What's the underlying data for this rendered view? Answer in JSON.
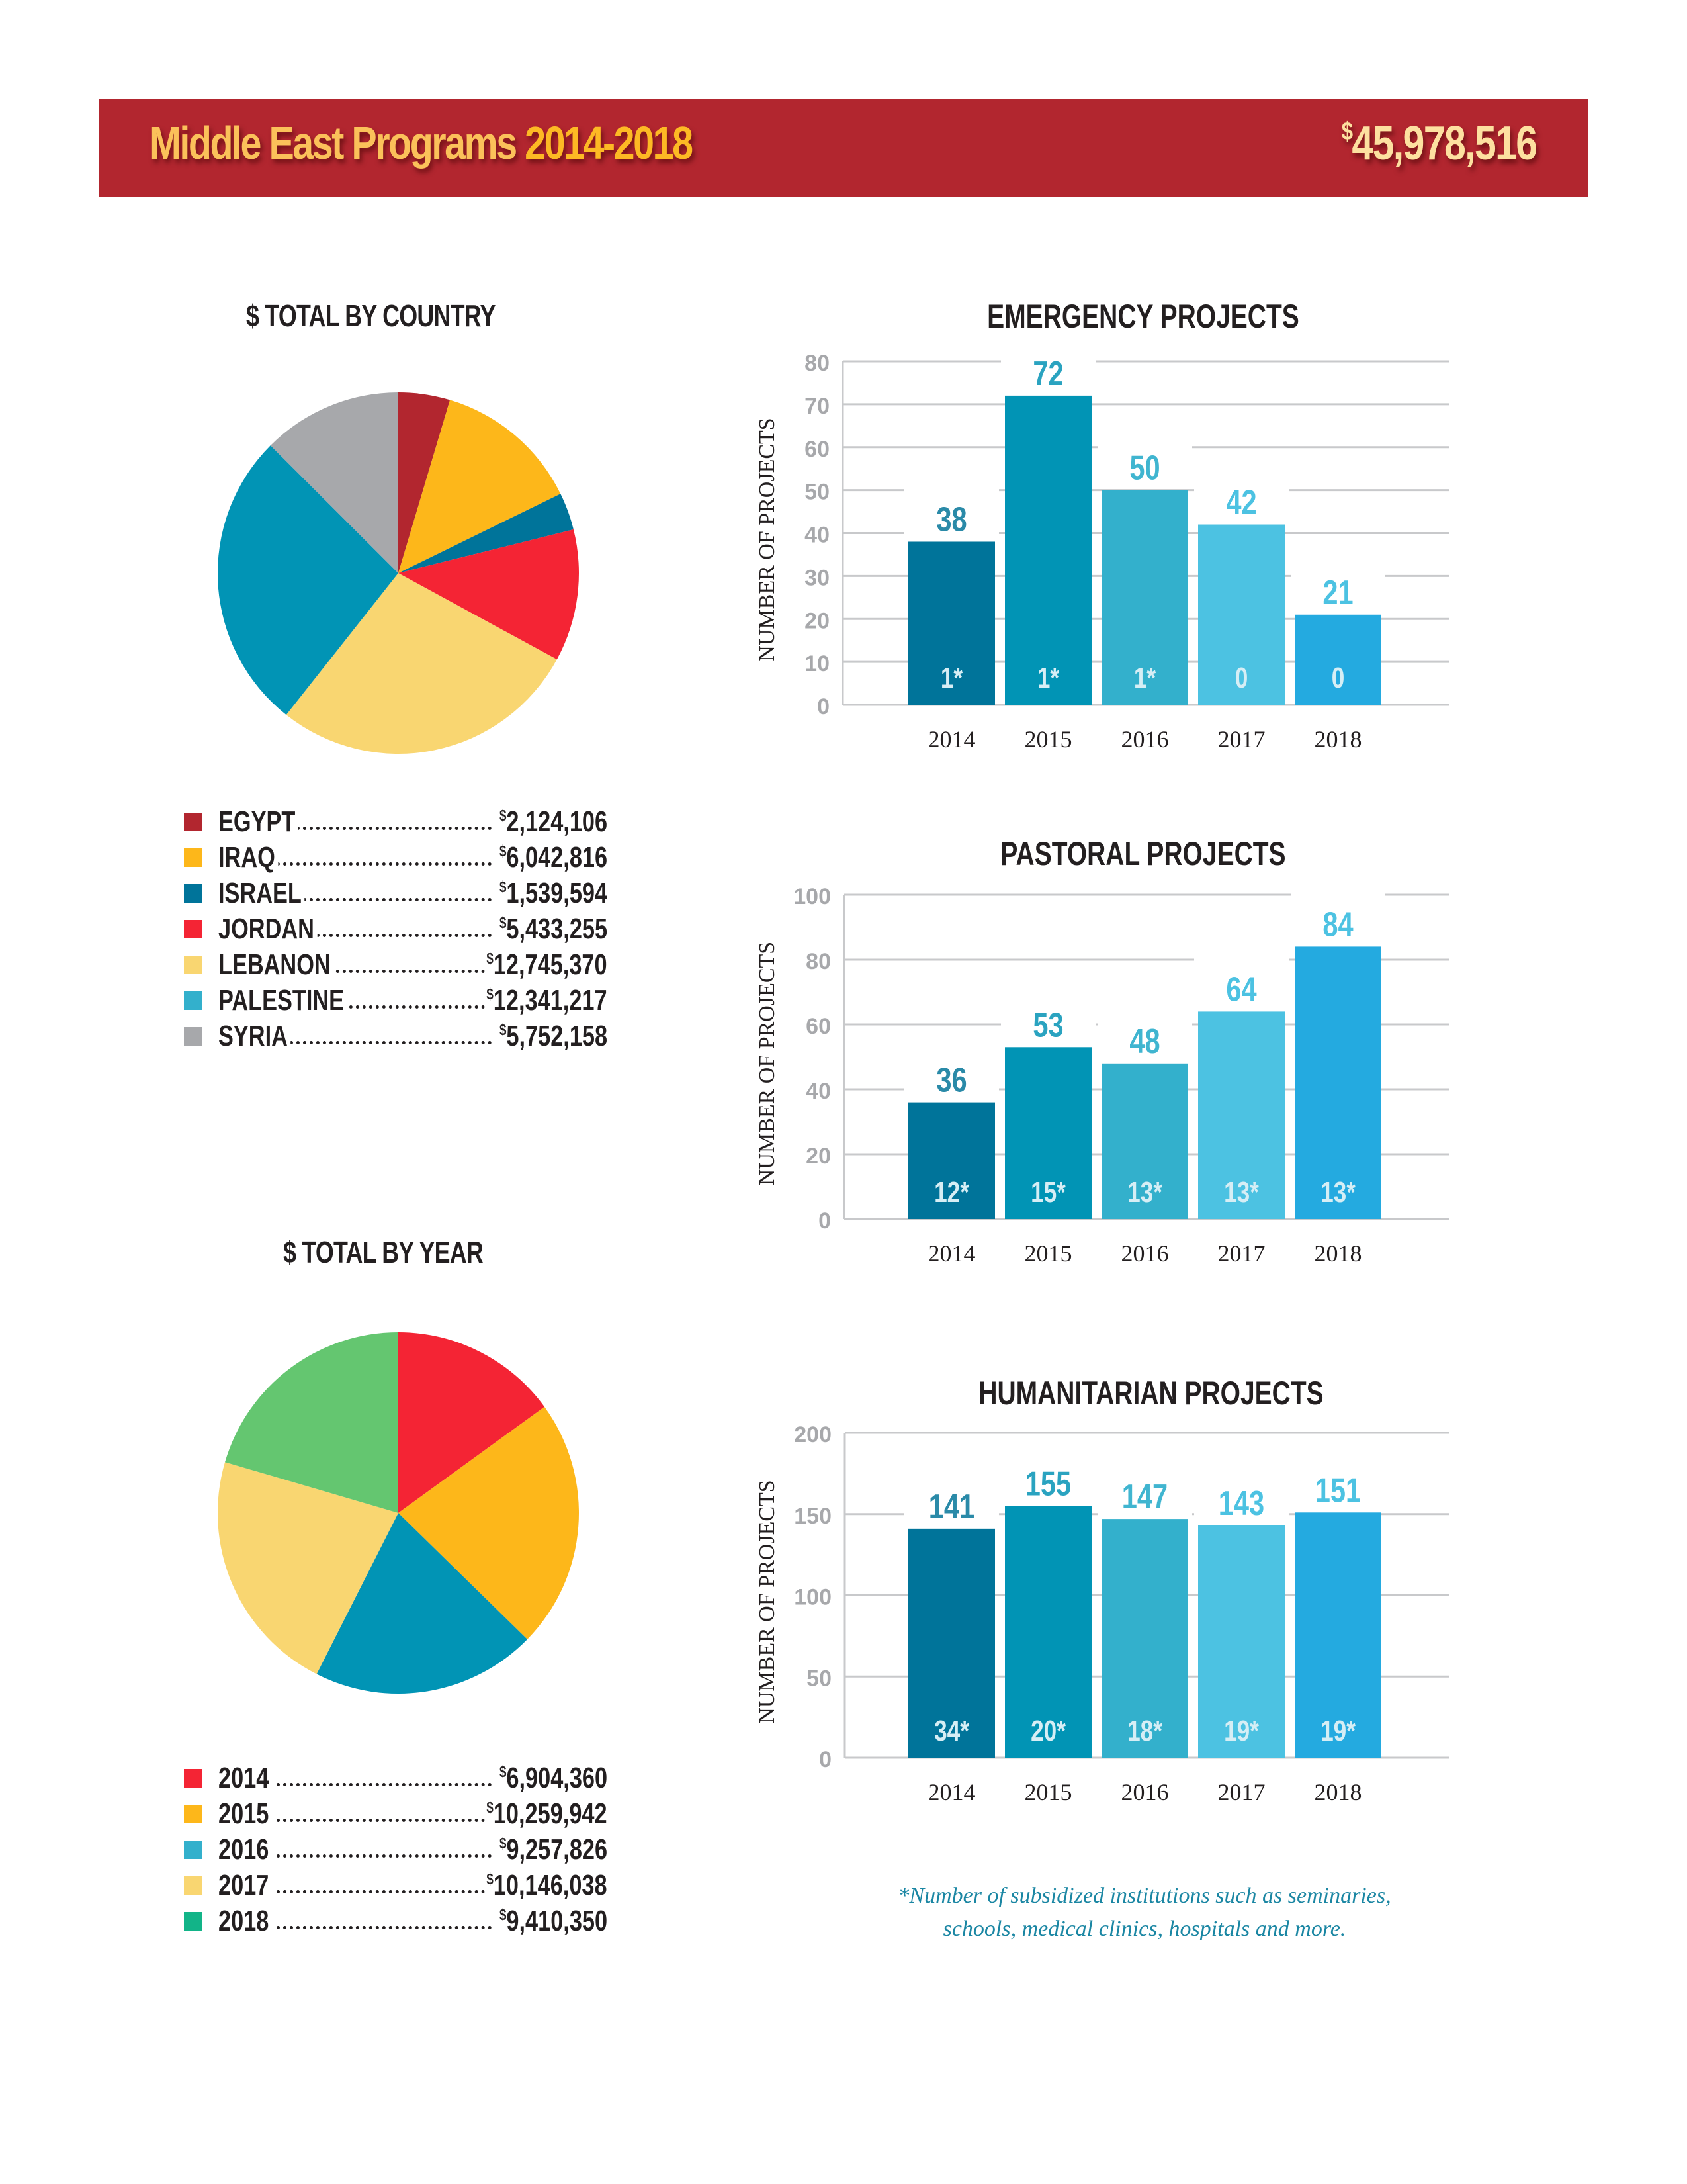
{
  "header": {
    "title_part1": "Middle East",
    "title_part2": "Programs",
    "title_years": "2014-2018",
    "total_currency": "$",
    "total_amount": "45,978,516"
  },
  "colors": {
    "banner": "#b2262f",
    "bar_2014": "#00749a",
    "bar_2015": "#0194b5",
    "bar_2016": "#33b0cc",
    "bar_2017": "#4cc2e2",
    "bar_2018": "#24aae0"
  },
  "country_section": {
    "title": "$ TOTAL BY COUNTRY",
    "legend": [
      {
        "label": "EGYPT",
        "currency": "$",
        "value": "2,124,106",
        "color": "#b2262f"
      },
      {
        "label": "IRAQ",
        "currency": "$",
        "value": "6,042,816",
        "color": "#fdb71a"
      },
      {
        "label": "ISRAEL",
        "currency": "$",
        "value": "1,539,594",
        "color": "#00749a"
      },
      {
        "label": "JORDAN",
        "currency": "$",
        "value": "5,433,255",
        "color": "#f42434"
      },
      {
        "label": "LEBANON",
        "currency": "$",
        "value": "12,745,370",
        "color": "#f9d671"
      },
      {
        "label": "PALESTINE",
        "currency": "$",
        "value": "12,341,217",
        "color": "#33b0cc"
      },
      {
        "label": "SYRIA",
        "currency": "$",
        "value": "5,752,158",
        "color": "#a7a8ab"
      }
    ]
  },
  "year_section": {
    "title": "$ TOTAL BY YEAR",
    "legend": [
      {
        "label": "2014",
        "currency": "$",
        "value": "6,904,360",
        "color": "#f42434"
      },
      {
        "label": "2015",
        "currency": "$",
        "value": "10,259,942",
        "color": "#fdb71a"
      },
      {
        "label": "2016",
        "currency": "$",
        "value": "9,257,826",
        "color": "#33b0cc"
      },
      {
        "label": "2017",
        "currency": "$",
        "value": "10,146,038",
        "color": "#f9d671"
      },
      {
        "label": "2018",
        "currency": "$",
        "value": "9,410,350",
        "color": "#12b488"
      }
    ]
  },
  "footnote": {
    "line1": "*Number of subsidized institutions such as seminaries,",
    "line2": "schools, medical clinics, hospitals and more."
  },
  "chart_data": [
    {
      "type": "pie",
      "title": "$ TOTAL BY COUNTRY",
      "categories": [
        "EGYPT",
        "IRAQ",
        "ISRAEL",
        "JORDAN",
        "LEBANON",
        "PALESTINE",
        "SYRIA"
      ],
      "values": [
        2124106,
        6042816,
        1539594,
        5433255,
        12745370,
        12341217,
        5752158
      ],
      "colors": [
        "#b2262f",
        "#fdb71a",
        "#00749a",
        "#f42434",
        "#f9d671",
        "#0194b5",
        "#a7a8ab"
      ],
      "start": "top, clockwise"
    },
    {
      "type": "pie",
      "title": "$ TOTAL BY YEAR",
      "categories": [
        "2014",
        "2015",
        "2016",
        "2017",
        "2018"
      ],
      "values": [
        6904360,
        10259942,
        9257826,
        10146038,
        9410350
      ],
      "colors": [
        "#f42434",
        "#fdb71a",
        "#0194b5",
        "#f9d671",
        "#64c670"
      ],
      "start": "top, clockwise"
    },
    {
      "type": "bar",
      "title": "EMERGENCY PROJECTS",
      "ylabel": "NUMBER OF PROJECTS",
      "xlabel": "",
      "categories": [
        "2014",
        "2015",
        "2016",
        "2017",
        "2018"
      ],
      "values": [
        38,
        72,
        50,
        42,
        21
      ],
      "inner_labels": [
        "1*",
        "1*",
        "1*",
        "0",
        "0"
      ],
      "ylim": [
        0,
        80
      ],
      "yticks": [
        0,
        10,
        20,
        30,
        40,
        50,
        60,
        70,
        80
      ],
      "grid": true
    },
    {
      "type": "bar",
      "title": "PASTORAL PROJECTS",
      "ylabel": "NUMBER OF PROJECTS",
      "xlabel": "",
      "categories": [
        "2014",
        "2015",
        "2016",
        "2017",
        "2018"
      ],
      "values": [
        36,
        53,
        48,
        64,
        84
      ],
      "inner_labels": [
        "12*",
        "15*",
        "13*",
        "13*",
        "13*"
      ],
      "ylim": [
        0,
        100
      ],
      "yticks": [
        0,
        20,
        40,
        60,
        80,
        100
      ],
      "grid": true
    },
    {
      "type": "bar",
      "title": "HUMANITARIAN PROJECTS",
      "ylabel": "NUMBER OF PROJECTS",
      "xlabel": "",
      "categories": [
        "2014",
        "2015",
        "2016",
        "2017",
        "2018"
      ],
      "values": [
        141,
        155,
        147,
        143,
        151
      ],
      "inner_labels": [
        "34*",
        "20*",
        "18*",
        "19*",
        "19*"
      ],
      "ylim": [
        0,
        200
      ],
      "yticks": [
        0,
        50,
        100,
        150,
        200
      ],
      "grid": true
    }
  ]
}
